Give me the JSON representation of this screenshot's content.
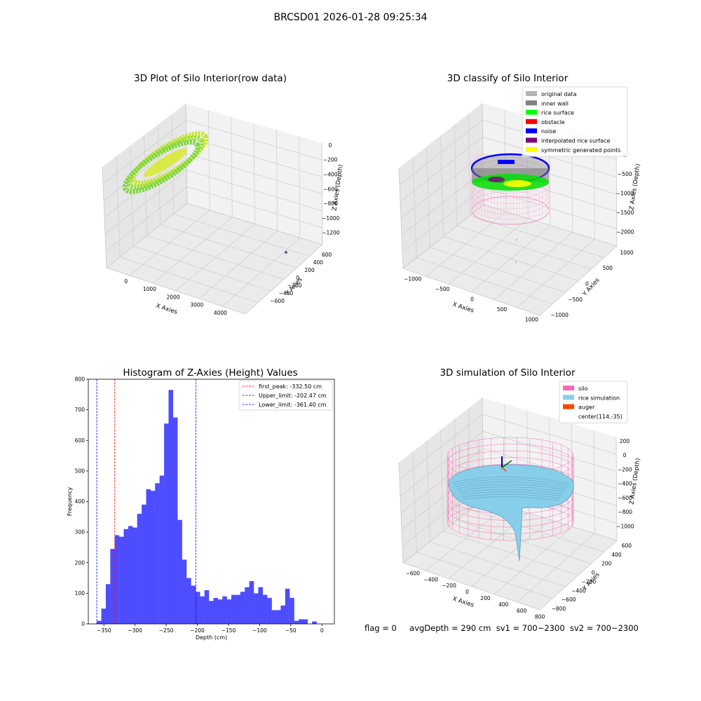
{
  "figure_title": "BRCSD01 2026-01-28 09:25:34",
  "footer": {
    "flag": "flag = 0",
    "avg_depth": "avgDepth = 290 cm",
    "sv1": "sv1 = 700~2300",
    "sv2": "sv2 = 700~2300"
  },
  "chart_data": [
    {
      "type": "scatter",
      "title": "3D Plot of Silo Interior(row data)",
      "xlabel": "X Axies",
      "ylabel": "Y Axies",
      "zlabel": "Z Axies (Depth)",
      "x_ticks": [
        "0",
        "1000",
        "2000",
        "3000",
        "4000"
      ],
      "y_ticks": [
        "−600",
        "−400",
        "−200",
        "0",
        "200",
        "400",
        "600"
      ],
      "z_ticks": [
        "0",
        "−200",
        "−400",
        "−600",
        "−800",
        "−1000",
        "−1200"
      ]
    },
    {
      "type": "scatter",
      "title": "3D classify of Silo Interior",
      "xlabel": "X Axies",
      "ylabel": "Y Axies",
      "zlabel": "Z Axies (Depth)",
      "x_ticks": [
        "−1000",
        "−500",
        "0",
        "500",
        "1000"
      ],
      "y_ticks": [
        "−1000",
        "−500",
        "0",
        "500",
        "1000"
      ],
      "z_ticks": [
        "0",
        "−500",
        "−1000",
        "−1500",
        "−2000"
      ],
      "legend": [
        {
          "label": "original data",
          "color": "#b3b3b3"
        },
        {
          "label": "inner wall",
          "color": "#808080"
        },
        {
          "label": "rice surface",
          "color": "#00ff00"
        },
        {
          "label": "obstacle",
          "color": "#ff0000"
        },
        {
          "label": "noise",
          "color": "#0000ff"
        },
        {
          "label": "interpolated rice surface",
          "color": "#800080"
        },
        {
          "label": "symmetric generated points",
          "color": "#ffff00"
        }
      ]
    },
    {
      "type": "bar",
      "title": "Histogram of Z-Axies (Height) Values",
      "xlabel": "Depth (cm)",
      "ylabel": "Frequency",
      "xlim": [
        -375,
        20
      ],
      "ylim": [
        0,
        800
      ],
      "x_ticks": [
        -350,
        -300,
        -250,
        -200,
        -150,
        -100,
        -50,
        0
      ],
      "y_ticks": [
        0,
        100,
        200,
        300,
        400,
        500,
        600,
        700,
        800
      ],
      "bar_color": "#4d4dff",
      "bin_width": 7.2,
      "bin_start": -361.4,
      "values": [
        10,
        50,
        130,
        245,
        290,
        285,
        310,
        320,
        315,
        360,
        390,
        440,
        435,
        460,
        485,
        655,
        765,
        675,
        340,
        210,
        150,
        125,
        105,
        90,
        110,
        75,
        85,
        80,
        90,
        80,
        95,
        95,
        105,
        120,
        140,
        100,
        120,
        95,
        85,
        45,
        45,
        60,
        115,
        85,
        10,
        15,
        15,
        0,
        8
      ],
      "lines": [
        {
          "label": "first_peak: -332.50 cm",
          "x": -332.5,
          "color": "#ff0000"
        },
        {
          "label": "Upper_limit: -202.47 cm",
          "x": -202.47,
          "color": "#0000ff"
        },
        {
          "label": "Lower_limit: -361.40 cm",
          "x": -361.4,
          "color": "#0000ff"
        }
      ]
    },
    {
      "type": "surface",
      "title": "3D simulation of Silo Interior",
      "xlabel": "X Axies",
      "ylabel": "Y Axies",
      "zlabel": "Z Axies (Depth)",
      "x_ticks": [
        "−600",
        "−400",
        "−200",
        "0",
        "200",
        "400",
        "600",
        "800"
      ],
      "y_ticks": [
        "−800",
        "−600",
        "−400",
        "−200",
        "0",
        "200",
        "400",
        "600"
      ],
      "z_ticks": [
        "200",
        "0",
        "−200",
        "−400",
        "−600",
        "−800",
        "−1000"
      ],
      "legend": [
        {
          "label": "silo",
          "color": "#ff69b4"
        },
        {
          "label": "rice simulation",
          "color": "#87ceeb"
        },
        {
          "label": "auger",
          "color": "#ff4500"
        },
        {
          "label": "center(114,-35)",
          "color": ""
        }
      ]
    }
  ]
}
